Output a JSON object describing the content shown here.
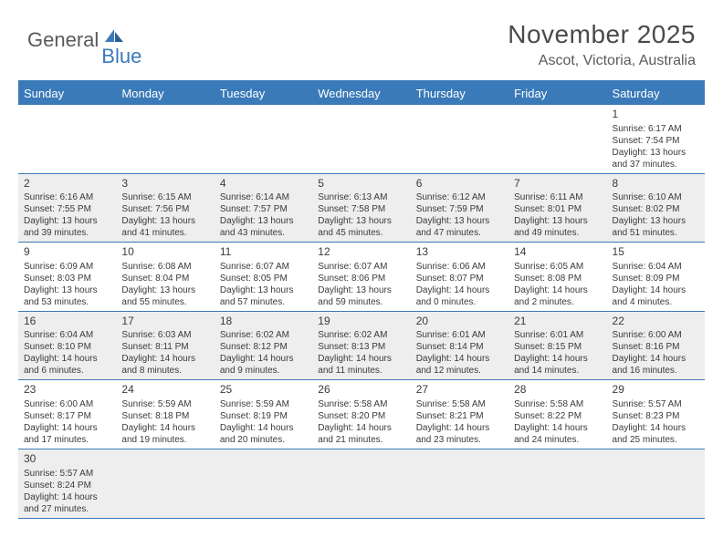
{
  "logo": {
    "text_general": "General",
    "text_blue": "Blue",
    "icon_fill": "#3a7ab8"
  },
  "title": {
    "month_year": "November 2025",
    "location": "Ascot, Victoria, Australia"
  },
  "colors": {
    "header_bg": "#3a7ab8",
    "header_text": "#ffffff",
    "row_alt_bg": "#eeeeee",
    "border": "#3a7ab8",
    "text": "#3a3a3a"
  },
  "day_headers": [
    "Sunday",
    "Monday",
    "Tuesday",
    "Wednesday",
    "Thursday",
    "Friday",
    "Saturday"
  ],
  "weeks": [
    [
      null,
      null,
      null,
      null,
      null,
      null,
      {
        "n": "1",
        "sr": "Sunrise: 6:17 AM",
        "ss": "Sunset: 7:54 PM",
        "dl1": "Daylight: 13 hours",
        "dl2": "and 37 minutes."
      }
    ],
    [
      {
        "n": "2",
        "sr": "Sunrise: 6:16 AM",
        "ss": "Sunset: 7:55 PM",
        "dl1": "Daylight: 13 hours",
        "dl2": "and 39 minutes."
      },
      {
        "n": "3",
        "sr": "Sunrise: 6:15 AM",
        "ss": "Sunset: 7:56 PM",
        "dl1": "Daylight: 13 hours",
        "dl2": "and 41 minutes."
      },
      {
        "n": "4",
        "sr": "Sunrise: 6:14 AM",
        "ss": "Sunset: 7:57 PM",
        "dl1": "Daylight: 13 hours",
        "dl2": "and 43 minutes."
      },
      {
        "n": "5",
        "sr": "Sunrise: 6:13 AM",
        "ss": "Sunset: 7:58 PM",
        "dl1": "Daylight: 13 hours",
        "dl2": "and 45 minutes."
      },
      {
        "n": "6",
        "sr": "Sunrise: 6:12 AM",
        "ss": "Sunset: 7:59 PM",
        "dl1": "Daylight: 13 hours",
        "dl2": "and 47 minutes."
      },
      {
        "n": "7",
        "sr": "Sunrise: 6:11 AM",
        "ss": "Sunset: 8:01 PM",
        "dl1": "Daylight: 13 hours",
        "dl2": "and 49 minutes."
      },
      {
        "n": "8",
        "sr": "Sunrise: 6:10 AM",
        "ss": "Sunset: 8:02 PM",
        "dl1": "Daylight: 13 hours",
        "dl2": "and 51 minutes."
      }
    ],
    [
      {
        "n": "9",
        "sr": "Sunrise: 6:09 AM",
        "ss": "Sunset: 8:03 PM",
        "dl1": "Daylight: 13 hours",
        "dl2": "and 53 minutes."
      },
      {
        "n": "10",
        "sr": "Sunrise: 6:08 AM",
        "ss": "Sunset: 8:04 PM",
        "dl1": "Daylight: 13 hours",
        "dl2": "and 55 minutes."
      },
      {
        "n": "11",
        "sr": "Sunrise: 6:07 AM",
        "ss": "Sunset: 8:05 PM",
        "dl1": "Daylight: 13 hours",
        "dl2": "and 57 minutes."
      },
      {
        "n": "12",
        "sr": "Sunrise: 6:07 AM",
        "ss": "Sunset: 8:06 PM",
        "dl1": "Daylight: 13 hours",
        "dl2": "and 59 minutes."
      },
      {
        "n": "13",
        "sr": "Sunrise: 6:06 AM",
        "ss": "Sunset: 8:07 PM",
        "dl1": "Daylight: 14 hours",
        "dl2": "and 0 minutes."
      },
      {
        "n": "14",
        "sr": "Sunrise: 6:05 AM",
        "ss": "Sunset: 8:08 PM",
        "dl1": "Daylight: 14 hours",
        "dl2": "and 2 minutes."
      },
      {
        "n": "15",
        "sr": "Sunrise: 6:04 AM",
        "ss": "Sunset: 8:09 PM",
        "dl1": "Daylight: 14 hours",
        "dl2": "and 4 minutes."
      }
    ],
    [
      {
        "n": "16",
        "sr": "Sunrise: 6:04 AM",
        "ss": "Sunset: 8:10 PM",
        "dl1": "Daylight: 14 hours",
        "dl2": "and 6 minutes."
      },
      {
        "n": "17",
        "sr": "Sunrise: 6:03 AM",
        "ss": "Sunset: 8:11 PM",
        "dl1": "Daylight: 14 hours",
        "dl2": "and 8 minutes."
      },
      {
        "n": "18",
        "sr": "Sunrise: 6:02 AM",
        "ss": "Sunset: 8:12 PM",
        "dl1": "Daylight: 14 hours",
        "dl2": "and 9 minutes."
      },
      {
        "n": "19",
        "sr": "Sunrise: 6:02 AM",
        "ss": "Sunset: 8:13 PM",
        "dl1": "Daylight: 14 hours",
        "dl2": "and 11 minutes."
      },
      {
        "n": "20",
        "sr": "Sunrise: 6:01 AM",
        "ss": "Sunset: 8:14 PM",
        "dl1": "Daylight: 14 hours",
        "dl2": "and 12 minutes."
      },
      {
        "n": "21",
        "sr": "Sunrise: 6:01 AM",
        "ss": "Sunset: 8:15 PM",
        "dl1": "Daylight: 14 hours",
        "dl2": "and 14 minutes."
      },
      {
        "n": "22",
        "sr": "Sunrise: 6:00 AM",
        "ss": "Sunset: 8:16 PM",
        "dl1": "Daylight: 14 hours",
        "dl2": "and 16 minutes."
      }
    ],
    [
      {
        "n": "23",
        "sr": "Sunrise: 6:00 AM",
        "ss": "Sunset: 8:17 PM",
        "dl1": "Daylight: 14 hours",
        "dl2": "and 17 minutes."
      },
      {
        "n": "24",
        "sr": "Sunrise: 5:59 AM",
        "ss": "Sunset: 8:18 PM",
        "dl1": "Daylight: 14 hours",
        "dl2": "and 19 minutes."
      },
      {
        "n": "25",
        "sr": "Sunrise: 5:59 AM",
        "ss": "Sunset: 8:19 PM",
        "dl1": "Daylight: 14 hours",
        "dl2": "and 20 minutes."
      },
      {
        "n": "26",
        "sr": "Sunrise: 5:58 AM",
        "ss": "Sunset: 8:20 PM",
        "dl1": "Daylight: 14 hours",
        "dl2": "and 21 minutes."
      },
      {
        "n": "27",
        "sr": "Sunrise: 5:58 AM",
        "ss": "Sunset: 8:21 PM",
        "dl1": "Daylight: 14 hours",
        "dl2": "and 23 minutes."
      },
      {
        "n": "28",
        "sr": "Sunrise: 5:58 AM",
        "ss": "Sunset: 8:22 PM",
        "dl1": "Daylight: 14 hours",
        "dl2": "and 24 minutes."
      },
      {
        "n": "29",
        "sr": "Sunrise: 5:57 AM",
        "ss": "Sunset: 8:23 PM",
        "dl1": "Daylight: 14 hours",
        "dl2": "and 25 minutes."
      }
    ],
    [
      {
        "n": "30",
        "sr": "Sunrise: 5:57 AM",
        "ss": "Sunset: 8:24 PM",
        "dl1": "Daylight: 14 hours",
        "dl2": "and 27 minutes."
      },
      null,
      null,
      null,
      null,
      null,
      null
    ]
  ]
}
